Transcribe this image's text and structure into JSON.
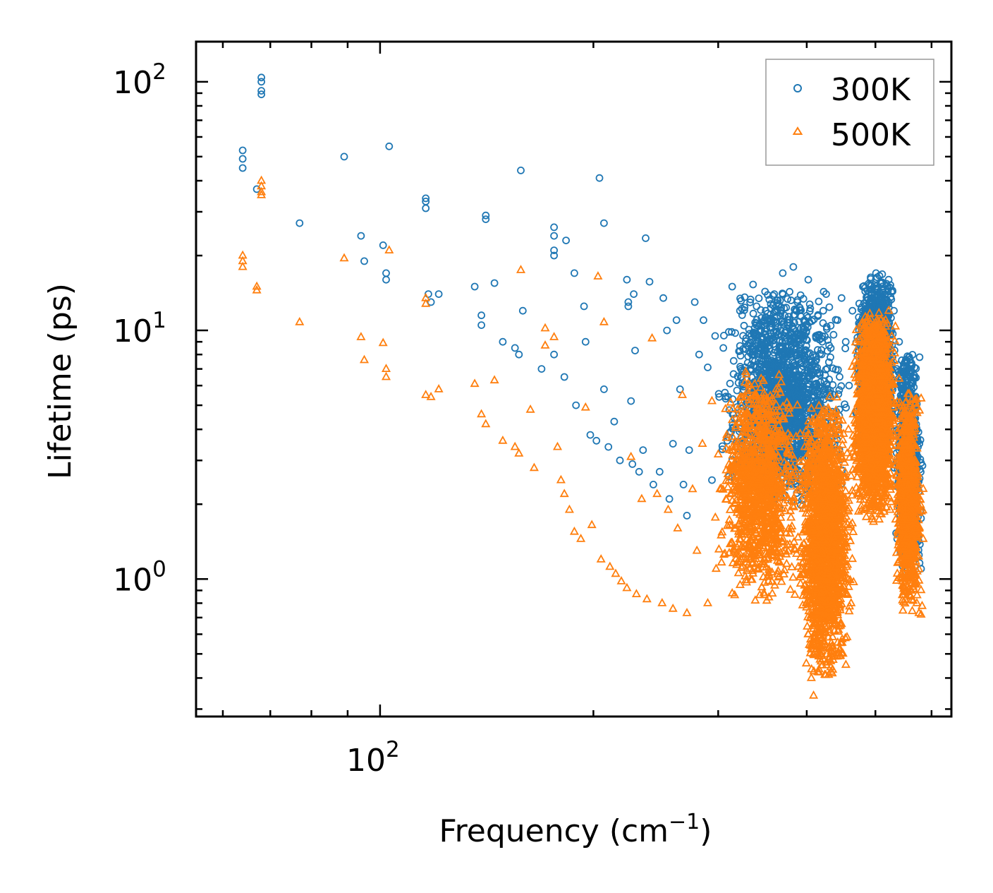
{
  "chart_data": {
    "type": "scatter",
    "title": "",
    "xlabel": "Frequency (cm",
    "xlabel_sup": "−1",
    "xlabel_close": ")",
    "ylabel": "Lifetime (ps)",
    "xscale": "log",
    "yscale": "log",
    "xlim": [
      55,
      640
    ],
    "ylim": [
      0.28,
      145
    ],
    "x_ticks": [
      {
        "value": 100,
        "base": "10",
        "exp": "2"
      }
    ],
    "y_ticks": [
      {
        "value": 1,
        "base": "10",
        "exp": "0"
      },
      {
        "value": 10,
        "base": "10",
        "exp": "1"
      },
      {
        "value": 100,
        "base": "10",
        "exp": "2"
      }
    ],
    "legend_position": "top-right",
    "series": [
      {
        "name": "300K",
        "marker": "circle",
        "color": "#1f77b4",
        "points": [
          [
            64,
            53
          ],
          [
            64,
            49
          ],
          [
            64,
            45
          ],
          [
            67,
            37
          ],
          [
            68,
            104
          ],
          [
            68,
            100
          ],
          [
            68,
            92
          ],
          [
            68,
            89
          ],
          [
            77,
            27
          ],
          [
            89,
            50
          ],
          [
            94,
            24
          ],
          [
            95,
            19
          ],
          [
            101,
            22
          ],
          [
            102,
            17
          ],
          [
            102,
            16
          ],
          [
            103,
            55
          ],
          [
            116,
            34
          ],
          [
            116,
            33
          ],
          [
            116,
            31
          ],
          [
            117,
            14
          ],
          [
            118,
            13
          ],
          [
            121,
            14
          ],
          [
            136,
            15
          ],
          [
            139,
            11.5
          ],
          [
            139,
            10.5
          ],
          [
            141,
            28
          ],
          [
            141,
            29
          ],
          [
            145,
            15.5
          ],
          [
            149,
            9
          ],
          [
            155,
            8.5
          ],
          [
            157,
            8
          ],
          [
            158,
            44
          ],
          [
            159,
            12
          ],
          [
            169,
            7
          ],
          [
            176,
            26
          ],
          [
            176,
            24
          ],
          [
            176,
            21
          ],
          [
            176,
            20
          ],
          [
            176,
            8
          ],
          [
            183,
            23
          ],
          [
            182,
            6.5
          ],
          [
            188,
            17
          ],
          [
            189,
            5
          ],
          [
            194,
            12.5
          ],
          [
            195,
            9
          ],
          [
            198,
            3.8
          ],
          [
            202,
            3.6
          ],
          [
            204,
            41
          ],
          [
            207,
            27
          ],
          [
            207,
            5.8
          ],
          [
            210,
            3.4
          ],
          [
            214,
            4.3
          ],
          [
            218,
            3
          ],
          [
            223,
            16
          ],
          [
            224,
            13
          ],
          [
            224,
            12.5
          ],
          [
            226,
            5.2
          ],
          [
            227,
            2.9
          ],
          [
            228,
            14
          ],
          [
            229,
            8.3
          ],
          [
            232,
            2.7
          ],
          [
            235,
            3.3
          ],
          [
            237,
            23.5
          ],
          [
            240,
            15.7
          ],
          [
            243,
            2.4
          ],
          [
            248,
            2.7
          ],
          [
            251,
            13.5
          ],
          [
            254,
            10
          ],
          [
            256,
            2.1
          ],
          [
            259,
            3.5
          ],
          [
            262,
            11
          ],
          [
            265,
            5.8
          ],
          [
            268,
            2.4
          ],
          [
            271,
            1.8
          ],
          [
            273,
            3.3
          ],
          [
            278,
            13
          ],
          [
            282,
            8
          ],
          [
            286,
            11
          ],
          [
            290,
            7.1
          ],
          [
            294,
            2.5
          ],
          [
            297,
            9.5
          ],
          [
            301,
            5.4
          ],
          [
            305,
            8.5
          ],
          [
            309,
            3.6
          ],
          [
            314,
            15
          ],
          [
            318,
            2.8
          ],
          [
            322,
            12
          ],
          [
            327,
            13.6
          ],
          [
            331,
            4.5
          ],
          [
            336,
            15.3
          ],
          [
            340,
            9
          ],
          [
            345,
            4.5
          ],
          [
            350,
            12
          ],
          [
            355,
            2.6
          ],
          [
            360,
            14
          ],
          [
            365,
            8
          ],
          [
            370,
            17
          ],
          [
            374,
            10
          ],
          [
            379,
            5.8
          ],
          [
            383,
            18
          ],
          [
            388,
            13
          ],
          [
            392,
            7.4
          ],
          [
            397,
            11
          ],
          [
            402,
            16
          ],
          [
            407,
            6.6
          ],
          [
            412,
            9.5
          ],
          [
            417,
            3.5
          ],
          [
            422,
            12
          ],
          [
            426,
            14
          ],
          [
            432,
            7.8
          ],
          [
            437,
            5.5
          ],
          [
            442,
            11
          ],
          [
            448,
            13.5
          ],
          [
            454,
            9
          ],
          [
            459,
            6
          ],
          [
            464,
            12
          ],
          [
            469,
            4.7
          ],
          [
            474,
            10
          ],
          [
            480,
            15
          ],
          [
            486,
            9
          ],
          [
            491,
            13
          ],
          [
            496,
            6.4
          ],
          [
            501,
            17
          ],
          [
            506,
            11.5
          ],
          [
            512,
            14
          ],
          [
            517,
            8
          ],
          [
            522,
            16
          ],
          [
            527,
            10
          ],
          [
            531,
            12
          ],
          [
            536,
            7
          ],
          [
            540,
            9
          ],
          [
            544,
            5.5
          ],
          [
            548,
            7
          ],
          [
            552,
            4.2
          ],
          [
            556,
            3.4
          ],
          [
            560,
            2.7
          ],
          [
            564,
            2.1
          ],
          [
            568,
            1.7
          ],
          [
            572,
            1.4
          ],
          [
            576,
            1.25
          ],
          [
            580,
            1.1
          ]
        ],
        "clusters": [
          {
            "x_min": 295,
            "x_max": 465,
            "y_min": 1.9,
            "y_max": 15,
            "count": 1700
          },
          {
            "x_min": 465,
            "x_max": 540,
            "y_min": 3.0,
            "y_max": 17,
            "count": 1800
          },
          {
            "x_min": 530,
            "x_max": 585,
            "y_min": 1.05,
            "y_max": 8.5,
            "count": 900
          }
        ]
      },
      {
        "name": "500K",
        "marker": "triangle",
        "color": "#ff7f0e",
        "points": [
          [
            64,
            20
          ],
          [
            64,
            19
          ],
          [
            64,
            18
          ],
          [
            67,
            15
          ],
          [
            67,
            14.5
          ],
          [
            68,
            40
          ],
          [
            68,
            38
          ],
          [
            68,
            36
          ],
          [
            68,
            35
          ],
          [
            77,
            10.8
          ],
          [
            89,
            19.5
          ],
          [
            94,
            9.4
          ],
          [
            95,
            7.6
          ],
          [
            101,
            8.9
          ],
          [
            102,
            7
          ],
          [
            102,
            6.5
          ],
          [
            103,
            21
          ],
          [
            116,
            13.5
          ],
          [
            116,
            12.8
          ],
          [
            116,
            5.5
          ],
          [
            118,
            5.4
          ],
          [
            121,
            5.8
          ],
          [
            136,
            6.1
          ],
          [
            139,
            4.6
          ],
          [
            141,
            4.2
          ],
          [
            145,
            6.3
          ],
          [
            149,
            3.6
          ],
          [
            155,
            3.4
          ],
          [
            157,
            3.2
          ],
          [
            158,
            17.5
          ],
          [
            163,
            4.8
          ],
          [
            165,
            2.8
          ],
          [
            171,
            10.2
          ],
          [
            171,
            8.7
          ],
          [
            176,
            9.4
          ],
          [
            178,
            3.4
          ],
          [
            180,
            2.5
          ],
          [
            182,
            2.2
          ],
          [
            185,
            1.9
          ],
          [
            188,
            1.55
          ],
          [
            192,
            1.45
          ],
          [
            195,
            4.9
          ],
          [
            199,
            1.65
          ],
          [
            203,
            16.5
          ],
          [
            205,
            1.2
          ],
          [
            207,
            10.8
          ],
          [
            211,
            1.12
          ],
          [
            215,
            1.05
          ],
          [
            219,
            0.98
          ],
          [
            223,
            0.92
          ],
          [
            226,
            3.1
          ],
          [
            230,
            0.87
          ],
          [
            234,
            2.1
          ],
          [
            238,
            0.83
          ],
          [
            242,
            9.3
          ],
          [
            246,
            2.2
          ],
          [
            250,
            0.8
          ],
          [
            255,
            1.9
          ],
          [
            259,
            0.76
          ],
          [
            263,
            1.6
          ],
          [
            267,
            5.5
          ],
          [
            271,
            0.73
          ],
          [
            276,
            2.3
          ],
          [
            280,
            1.3
          ],
          [
            285,
            3.5
          ],
          [
            290,
            0.8
          ],
          [
            294,
            5.2
          ],
          [
            298,
            1.1
          ],
          [
            303,
            1.5
          ],
          [
            308,
            3.7
          ],
          [
            313,
            1.4
          ],
          [
            318,
            2.6
          ],
          [
            323,
            1.9
          ],
          [
            328,
            4.3
          ],
          [
            333,
            1.2
          ],
          [
            338,
            3.4
          ],
          [
            343,
            2.1
          ],
          [
            348,
            5.6
          ],
          [
            353,
            1.7
          ],
          [
            358,
            4.7
          ],
          [
            363,
            2.4
          ],
          [
            368,
            6.2
          ],
          [
            373,
            1.3
          ],
          [
            378,
            3.4
          ],
          [
            383,
            2.6
          ],
          [
            388,
            5
          ],
          [
            393,
            1.1
          ],
          [
            398,
            0.9
          ],
          [
            402,
            0.6
          ],
          [
            406,
            0.4
          ],
          [
            409,
            0.34
          ],
          [
            413,
            0.5
          ],
          [
            417,
            0.7
          ],
          [
            421,
            1.1
          ],
          [
            425,
            2.3
          ],
          [
            429,
            3.6
          ],
          [
            434,
            0.9
          ],
          [
            438,
            0.75
          ],
          [
            443,
            0.5
          ],
          [
            448,
            1.3
          ],
          [
            453,
            2.7
          ],
          [
            458,
            4
          ],
          [
            462,
            0.8
          ],
          [
            467,
            3.1
          ],
          [
            472,
            2.2
          ],
          [
            477,
            5.6
          ],
          [
            482,
            3.8
          ],
          [
            487,
            7
          ],
          [
            492,
            4.6
          ],
          [
            497,
            1.7
          ],
          [
            502,
            8.5
          ],
          [
            507,
            6
          ],
          [
            512,
            9.6
          ],
          [
            517,
            3.9
          ],
          [
            522,
            12
          ],
          [
            527,
            7.4
          ],
          [
            531,
            5.1
          ],
          [
            536,
            2.6
          ],
          [
            540,
            6.4
          ],
          [
            544,
            3.1
          ],
          [
            548,
            4.5
          ],
          [
            552,
            1.8
          ],
          [
            556,
            2.5
          ],
          [
            560,
            1.4
          ],
          [
            564,
            1.1
          ],
          [
            568,
            0.95
          ],
          [
            572,
            0.8
          ],
          [
            576,
            0.73
          ],
          [
            580,
            0.72
          ],
          [
            582,
            0.78
          ]
        ],
        "clusters": [
          {
            "x_min": 295,
            "x_max": 400,
            "y_min": 0.8,
            "y_max": 7.0,
            "count": 1100
          },
          {
            "x_min": 385,
            "x_max": 470,
            "y_min": 0.38,
            "y_max": 5.5,
            "count": 1700
          },
          {
            "x_min": 460,
            "x_max": 540,
            "y_min": 1.7,
            "y_max": 12,
            "count": 1900
          },
          {
            "x_min": 530,
            "x_max": 585,
            "y_min": 0.72,
            "y_max": 6.0,
            "count": 900
          }
        ]
      }
    ]
  }
}
